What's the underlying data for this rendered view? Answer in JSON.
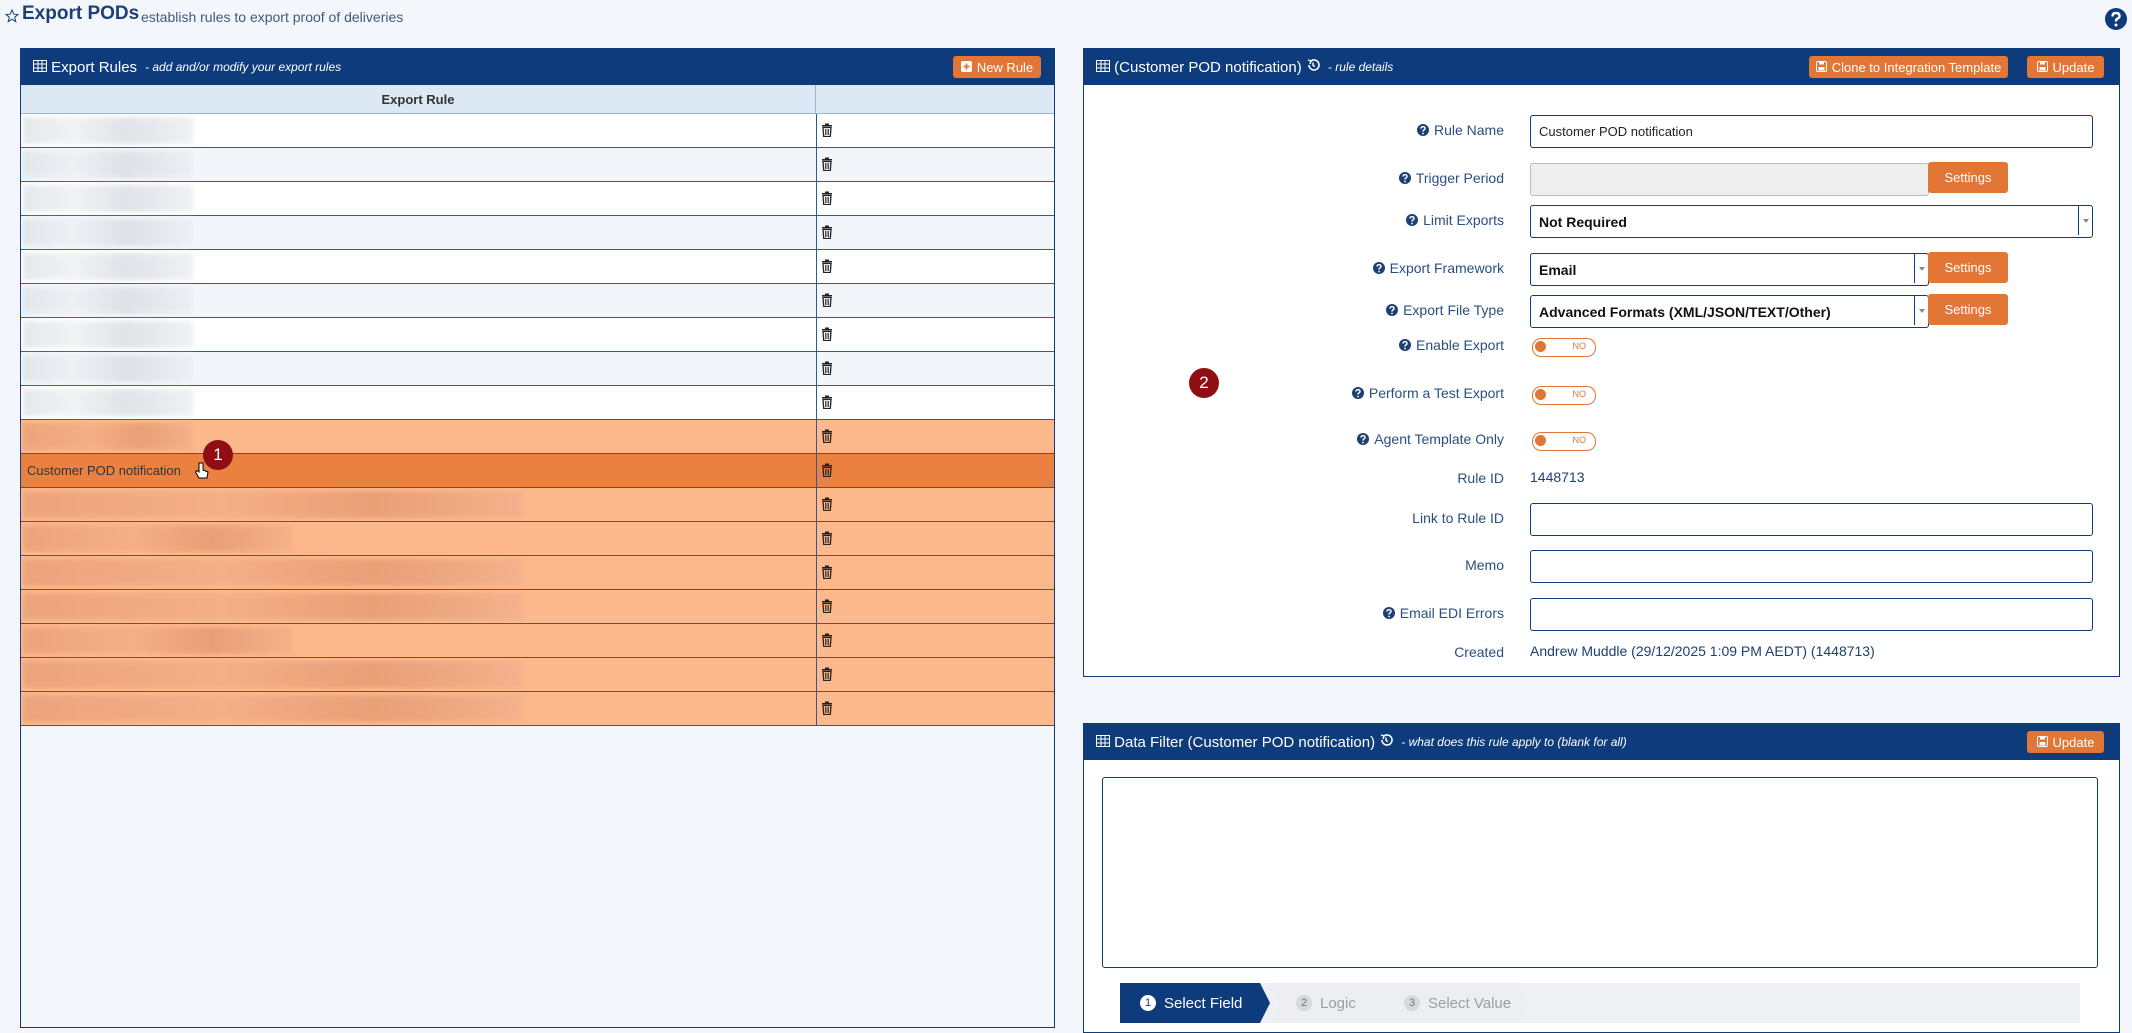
{
  "header": {
    "title": "Export PODs",
    "subtitle": "establish rules to export proof of deliveries"
  },
  "rules_panel": {
    "title": "Export Rules",
    "subtitle": "- add and/or modify your export rules",
    "button": "New Rule",
    "column": "Export Rule",
    "rows": [
      {
        "state": "normal"
      },
      {
        "state": "normal"
      },
      {
        "state": "normal"
      },
      {
        "state": "normal"
      },
      {
        "state": "normal"
      },
      {
        "state": "normal"
      },
      {
        "state": "normal"
      },
      {
        "state": "normal"
      },
      {
        "state": "normal"
      },
      {
        "state": "pending"
      },
      {
        "state": "selected",
        "name": "Customer POD notification"
      },
      {
        "state": "pending"
      },
      {
        "state": "pending"
      },
      {
        "state": "pending"
      },
      {
        "state": "pending"
      },
      {
        "state": "pending"
      },
      {
        "state": "pending"
      },
      {
        "state": "pending"
      }
    ]
  },
  "details_panel": {
    "title": "(Customer POD notification)",
    "subtitle": "- rule details",
    "buttons": [
      "Clone to Integration Template",
      "Update"
    ],
    "fields": [
      {
        "label": "Rule Name",
        "help": true,
        "input": "text",
        "value": "Customer POD notification"
      },
      {
        "label": "Trigger Period",
        "help": true,
        "input": "disabled",
        "button": "Settings"
      },
      {
        "label": "Limit Exports",
        "help": true,
        "input": "select-wide",
        "value": "Not Required"
      },
      {
        "label": "Export Framework",
        "help": true,
        "input": "select",
        "value": "Email",
        "button": "Settings"
      },
      {
        "label": "Export File Type",
        "help": true,
        "input": "select",
        "value": "Advanced Formats (XML/JSON/TEXT/Other)",
        "button": "Settings"
      },
      {
        "label": "Enable Export",
        "help": true,
        "input": "toggle",
        "value": "NO"
      },
      {
        "label": "Perform a Test Export",
        "help": true,
        "input": "toggle",
        "value": "NO"
      },
      {
        "label": "Agent Template Only",
        "help": true,
        "input": "toggle",
        "value": "NO"
      },
      {
        "label": "Rule ID",
        "help": false,
        "input": "static",
        "value": "1448713"
      },
      {
        "label": "Link to Rule ID",
        "help": false,
        "input": "text"
      },
      {
        "label": "Memo",
        "help": false,
        "input": "text"
      },
      {
        "label": "Email EDI Errors",
        "help": true,
        "input": "text"
      },
      {
        "label": "Created",
        "help": false,
        "input": "static",
        "value": "Andrew Muddle (29/12/2025 1:09 PM AEDT) (1448713)"
      }
    ]
  },
  "filter_panel": {
    "title": "Data Filter (Customer POD notification)",
    "subtitle": "- what does this rule apply to (blank for all)",
    "button": "Update",
    "steps": [
      {
        "number": "1",
        "label": "Select Field",
        "active": true
      },
      {
        "number": "2",
        "label": "Logic",
        "active": false
      },
      {
        "number": "3",
        "label": "Select Value",
        "active": false
      }
    ]
  },
  "annotations": [
    "1",
    "2"
  ]
}
